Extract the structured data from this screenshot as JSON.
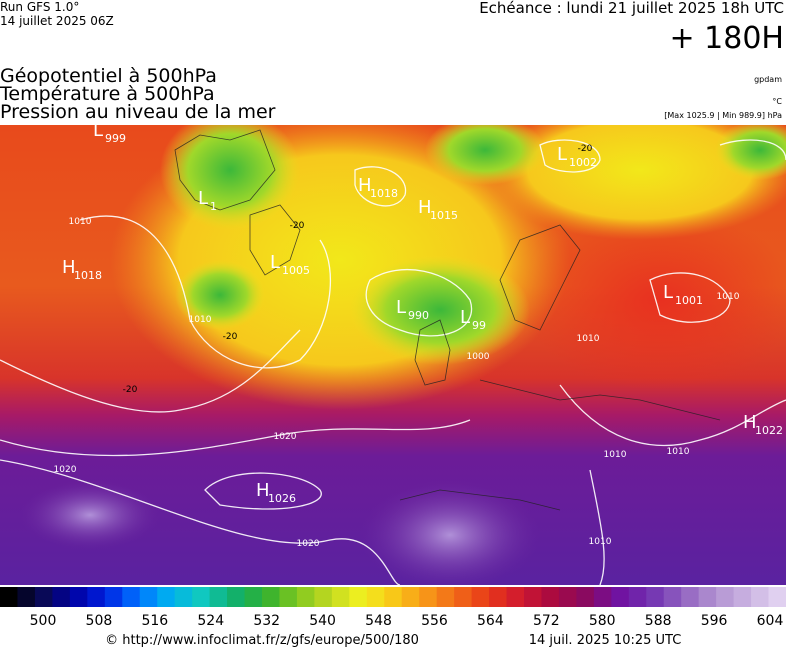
{
  "header": {
    "run": "Run GFS 1.0°",
    "date": "14 juillet 2025 06Z",
    "echeance": "Echéance : lundi 21 juillet 2025 18h UTC",
    "lead": "+ 180H"
  },
  "layers": [
    "Géopotentiel à 500hPa",
    "Température à 500hPa",
    "Pression au niveau de la mer"
  ],
  "units": {
    "geopotential": "gpdam",
    "temperature": "°C",
    "pressure": "[Max 1025.9 | Min 989.9] hPa"
  },
  "centers": [
    {
      "type": "L",
      "value": "999"
    },
    {
      "type": "H",
      "value": "1018"
    },
    {
      "type": "H",
      "value": "1015"
    },
    {
      "type": "L",
      "value": "1005"
    },
    {
      "type": "H",
      "value": "1018"
    },
    {
      "type": "L",
      "value": "990"
    },
    {
      "type": "L",
      "value": "99"
    },
    {
      "type": "L",
      "value": "1001"
    },
    {
      "type": "L",
      "value": "1002"
    },
    {
      "type": "H",
      "value": "1026"
    },
    {
      "type": "H",
      "value": "1022"
    },
    {
      "type": "L",
      "value": "1"
    }
  ],
  "isobar_labels": [
    "1010",
    "1010",
    "1020",
    "1020",
    "1020",
    "1010",
    "1010",
    "1010",
    "1000",
    "1010",
    "1010"
  ],
  "temperature_labels": [
    "-20",
    "-20",
    "-20",
    "-20"
  ],
  "scale": {
    "ticks": [
      500,
      508,
      516,
      524,
      532,
      540,
      548,
      556,
      564,
      572,
      580,
      588,
      596,
      604
    ]
  },
  "footer": {
    "url": "© http://www.infoclimat.fr/z/gfs/europe/500/180",
    "generated": "14 juil. 2025 10:25 UTC"
  }
}
